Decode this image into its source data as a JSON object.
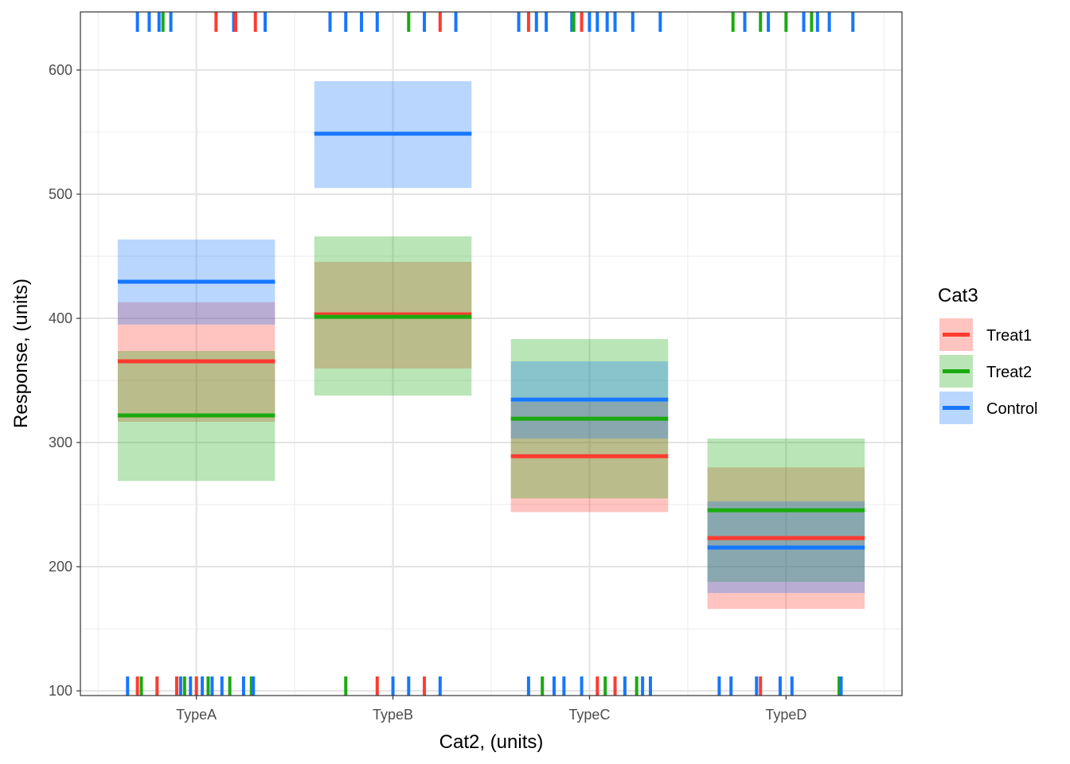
{
  "chart_data": {
    "type": "crossbar-range",
    "xlabel": "Cat2, (units)",
    "ylabel": "Response, (units)",
    "categories": [
      "TypeA",
      "TypeB",
      "TypeC",
      "TypeD"
    ],
    "xlim": [
      0.41,
      4.59
    ],
    "ylim": [
      96.2,
      646.8
    ],
    "yticks": [
      100,
      200,
      300,
      400,
      500,
      600
    ],
    "grid": true,
    "legend": {
      "title": "Cat3",
      "placement": "right",
      "entries": [
        "Treat1",
        "Treat2",
        "Control"
      ]
    },
    "colors": {
      "Treat1": "#FF3B30",
      "Treat2": "#1AAA10",
      "Control": "#1677FF"
    },
    "series": [
      {
        "name": "Treat1",
        "mean": [
          365.4,
          403.2,
          289.0,
          223.0
        ],
        "lower": [
          316.7,
          359.6,
          244.0,
          166.0
        ],
        "upper": [
          413.0,
          445.5,
          332.7,
          280.0
        ]
      },
      {
        "name": "Treat2",
        "mean": [
          321.8,
          401.3,
          319.2,
          245.5
        ],
        "lower": [
          269.0,
          337.8,
          255.0,
          187.8
        ],
        "upper": [
          373.7,
          466.0,
          383.3,
          303.2
        ]
      },
      {
        "name": "Control",
        "mean": [
          429.5,
          548.7,
          334.6,
          215.4
        ],
        "lower": [
          395.0,
          505.0,
          303.2,
          178.8
        ],
        "upper": [
          463.5,
          591.0,
          365.4,
          252.6
        ]
      }
    ],
    "rug_top": [
      [
        0.7,
        "Control"
      ],
      [
        0.76,
        "Control"
      ],
      [
        0.81,
        "Control"
      ],
      [
        0.83,
        "Treat2"
      ],
      [
        0.87,
        "Control"
      ],
      [
        1.1,
        "Treat1"
      ],
      [
        1.19,
        "Control"
      ],
      [
        1.2,
        "Treat1"
      ],
      [
        1.3,
        "Treat1"
      ],
      [
        1.35,
        "Control"
      ],
      [
        1.68,
        "Control"
      ],
      [
        1.76,
        "Control"
      ],
      [
        1.84,
        "Control"
      ],
      [
        1.92,
        "Control"
      ],
      [
        2.08,
        "Treat2"
      ],
      [
        2.16,
        "Control"
      ],
      [
        2.24,
        "Treat1"
      ],
      [
        2.32,
        "Control"
      ],
      [
        2.64,
        "Control"
      ],
      [
        2.69,
        "Treat1"
      ],
      [
        2.73,
        "Control"
      ],
      [
        2.78,
        "Control"
      ],
      [
        2.91,
        "Control"
      ],
      [
        2.92,
        "Treat2"
      ],
      [
        2.96,
        "Treat1"
      ],
      [
        3.0,
        "Control"
      ],
      [
        3.04,
        "Control"
      ],
      [
        3.09,
        "Control"
      ],
      [
        3.13,
        "Control"
      ],
      [
        3.22,
        "Control"
      ],
      [
        3.36,
        "Control"
      ],
      [
        3.73,
        "Treat2"
      ],
      [
        3.79,
        "Control"
      ],
      [
        3.87,
        "Treat2"
      ],
      [
        3.91,
        "Control"
      ],
      [
        4.0,
        "Treat2"
      ],
      [
        4.09,
        "Control"
      ],
      [
        4.13,
        "Treat2"
      ],
      [
        4.16,
        "Control"
      ],
      [
        4.22,
        "Control"
      ],
      [
        4.34,
        "Control"
      ]
    ],
    "rug_bottom": [
      [
        0.65,
        "Control"
      ],
      [
        0.7,
        "Treat1"
      ],
      [
        0.72,
        "Treat2"
      ],
      [
        0.8,
        "Treat1"
      ],
      [
        0.9,
        "Treat1"
      ],
      [
        0.92,
        "Control"
      ],
      [
        0.94,
        "Treat2"
      ],
      [
        0.97,
        "Control"
      ],
      [
        1.0,
        "Treat1"
      ],
      [
        1.03,
        "Control"
      ],
      [
        1.06,
        "Treat2"
      ],
      [
        1.08,
        "Control"
      ],
      [
        1.13,
        "Control"
      ],
      [
        1.17,
        "Treat2"
      ],
      [
        1.24,
        "Control"
      ],
      [
        1.28,
        "Treat2"
      ],
      [
        1.29,
        "Control"
      ],
      [
        1.76,
        "Treat2"
      ],
      [
        1.92,
        "Treat1"
      ],
      [
        2.0,
        "Control"
      ],
      [
        2.08,
        "Control"
      ],
      [
        2.16,
        "Treat1"
      ],
      [
        2.24,
        "Control"
      ],
      [
        2.69,
        "Control"
      ],
      [
        2.76,
        "Treat2"
      ],
      [
        2.82,
        "Control"
      ],
      [
        2.87,
        "Control"
      ],
      [
        2.96,
        "Control"
      ],
      [
        3.04,
        "Treat1"
      ],
      [
        3.08,
        "Treat2"
      ],
      [
        3.13,
        "Treat1"
      ],
      [
        3.18,
        "Control"
      ],
      [
        3.24,
        "Treat2"
      ],
      [
        3.27,
        "Control"
      ],
      [
        3.31,
        "Control"
      ],
      [
        3.66,
        "Control"
      ],
      [
        3.72,
        "Control"
      ],
      [
        3.85,
        "Control"
      ],
      [
        3.87,
        "Treat1"
      ],
      [
        3.97,
        "Control"
      ],
      [
        4.03,
        "Control"
      ],
      [
        4.27,
        "Treat2"
      ],
      [
        4.28,
        "Control"
      ]
    ]
  }
}
